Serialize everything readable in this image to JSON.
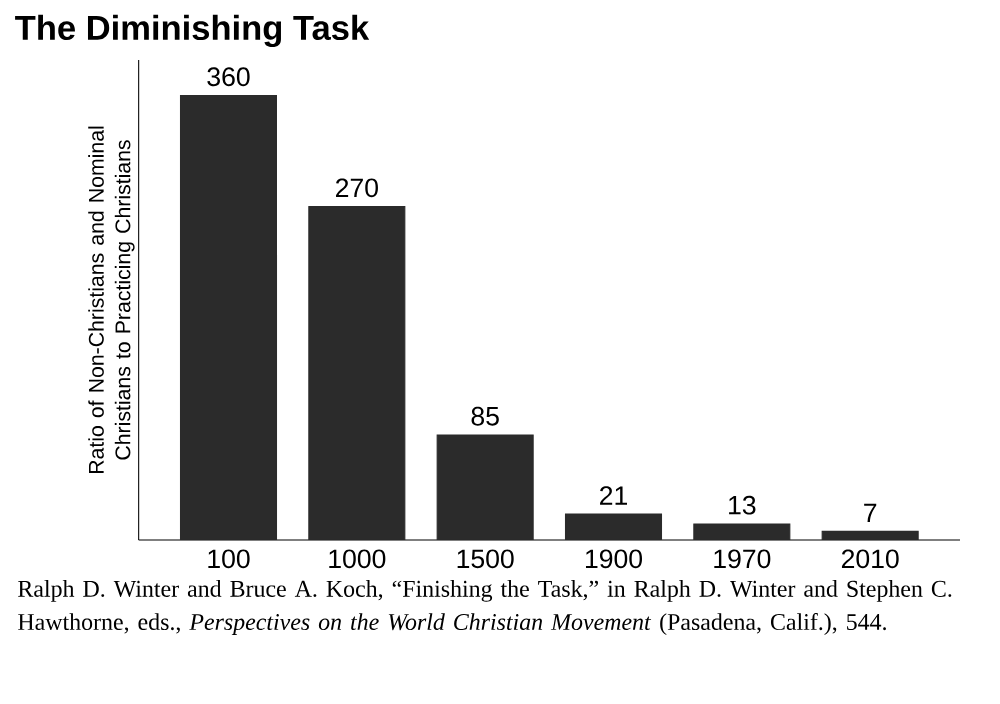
{
  "chart_data": {
    "type": "bar",
    "title": "The Diminishing Task",
    "ylabel": "Ratio of Non-Christians and Nominal Christians to Practicing Christians",
    "categories": [
      "100",
      "1000",
      "1500",
      "1900",
      "1970",
      "2010"
    ],
    "values": [
      360,
      270,
      85,
      21,
      13,
      7
    ],
    "color": "#2b2b2b",
    "data_labels": true,
    "annotations": [
      "Ralph D. Winter and Bruce A. Koch, “Finishing the Task,” in Ralph D. Winter and Stephen C. Hawthorne, eds., *Perspectives on the World Christian Movement* (Pasadena, Calif.), 544."
    ]
  }
}
